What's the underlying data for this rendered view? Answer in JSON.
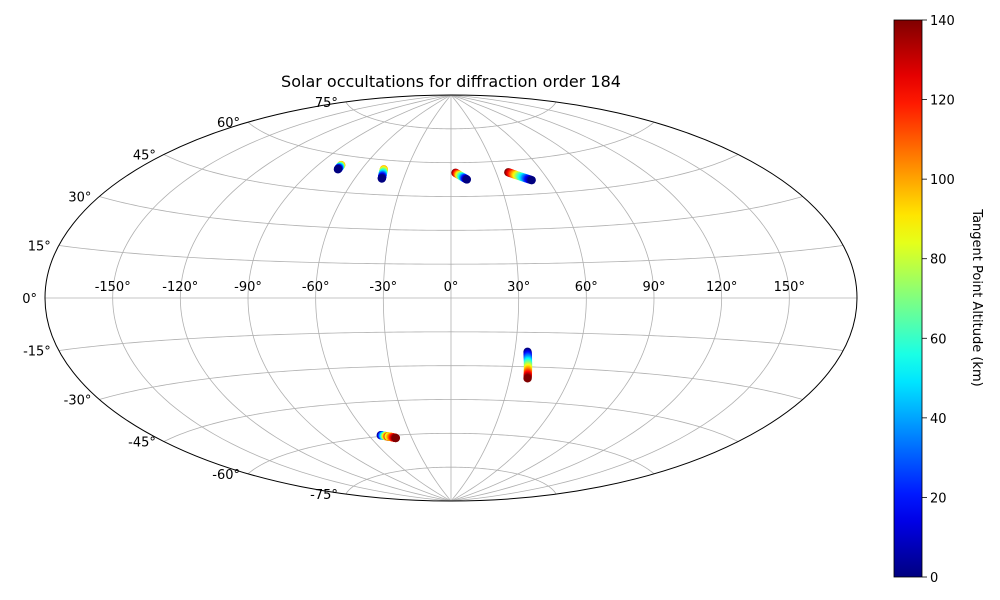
{
  "chart_data": {
    "type": "scatter",
    "title": "Solar occultations for diffraction order 184",
    "projection": "aitoff",
    "grid": true,
    "longitude_ticks": [
      -150,
      -120,
      -90,
      -60,
      -30,
      0,
      30,
      60,
      90,
      120,
      150
    ],
    "latitude_ticks": [
      -75,
      -60,
      -45,
      -30,
      -15,
      0,
      15,
      30,
      45,
      60,
      75
    ],
    "longitude_tick_labels": [
      "-150°",
      "-120°",
      "-90°",
      "-60°",
      "-30°",
      "0°",
      "30°",
      "60°",
      "90°",
      "120°",
      "150°"
    ],
    "latitude_tick_labels": [
      "-75°",
      "-60°",
      "-45°",
      "-30°",
      "-15°",
      "0°",
      "15°",
      "30°",
      "45°",
      "60°",
      "75°"
    ],
    "colorbar": {
      "label": "Tangent Point Altitude (km)",
      "range": [
        0,
        140
      ],
      "ticks": [
        0,
        20,
        40,
        60,
        80,
        100,
        120,
        140
      ],
      "tick_labels": [
        "0",
        "20",
        "40",
        "60",
        "80",
        "100",
        "120",
        "140"
      ],
      "colormap": "jet"
    },
    "occultations": [
      {
        "lon_start": -75.5,
        "lat_start": 56.0,
        "lon_end": -75.0,
        "lat_end": 54.2,
        "alt_start": 100,
        "alt_end": 0
      },
      {
        "lon_start": -45.5,
        "lat_start": 56.0,
        "lon_end": -43.5,
        "lat_end": 52.0,
        "alt_start": 100,
        "alt_end": 0
      },
      {
        "lon_start": 3.0,
        "lat_start": 55.5,
        "lon_end": 10.0,
        "lat_end": 52.5,
        "alt_start": 140,
        "alt_end": 0
      },
      {
        "lon_start": 38.0,
        "lat_start": 55.0,
        "lon_end": 50.0,
        "lat_end": 51.0,
        "alt_start": 140,
        "alt_end": 0
      },
      {
        "lon_start": 36.0,
        "lat_start": -23.5,
        "lon_end": 39.0,
        "lat_end": -35.0,
        "alt_start": 0,
        "alt_end": 140
      },
      {
        "lon_start": -51.5,
        "lat_start": -59.5,
        "lon_end": -46.0,
        "lat_end": -60.5,
        "alt_start": 0,
        "alt_end": 140
      },
      {
        "lon_start": -46.5,
        "lat_start": -60.3,
        "lon_end": -42.0,
        "lat_end": -61.2,
        "alt_start": 80,
        "alt_end": 140
      }
    ]
  }
}
